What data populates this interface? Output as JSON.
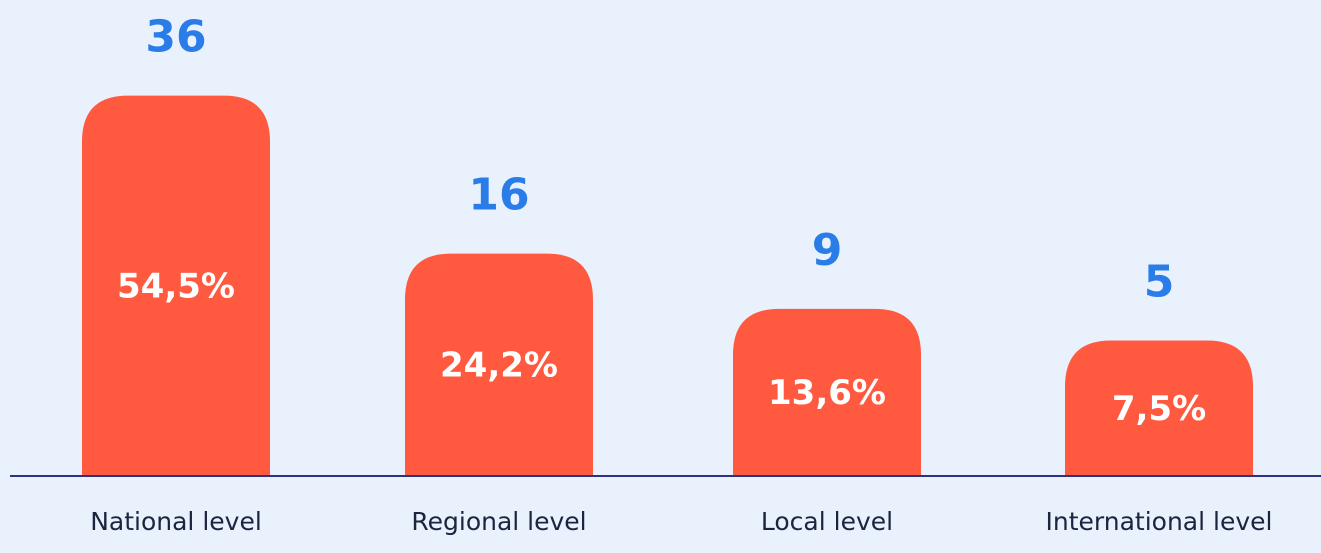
{
  "chart_data": {
    "type": "bar",
    "categories": [
      "National level",
      "Regional level",
      "Local level",
      "International level"
    ],
    "values": [
      36,
      16,
      9,
      5
    ],
    "percentages": [
      54.5,
      24.2,
      13.6,
      7.5
    ],
    "percentage_labels": [
      "54,5%",
      "24,2%",
      "13,6%",
      "7,5%"
    ],
    "color": "#ff5a40"
  }
}
